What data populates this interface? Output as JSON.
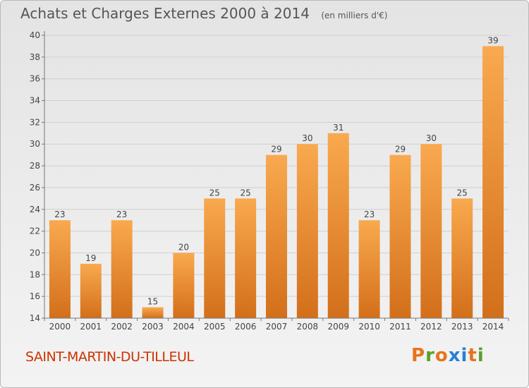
{
  "header": {
    "title": "Achats et Charges Externes 2000 à 2014",
    "unit": "(en milliers d'€)"
  },
  "footer": {
    "place": "SAINT-MARTIN-DU-TILLEUL",
    "logo": "Proxiti"
  },
  "colors": {
    "bar_light": "#f9a94f",
    "bar_dark": "#d36f1a",
    "place": "#cc3300",
    "logo_letters": [
      "#e8731a",
      "#5aa02c",
      "#e8731a",
      "#2a7fd4",
      "#2a7fd4",
      "#e8731a",
      "#5aa02c"
    ]
  },
  "chart_data": {
    "type": "bar",
    "categories": [
      "2000",
      "2001",
      "2002",
      "2003",
      "2004",
      "2005",
      "2006",
      "2007",
      "2008",
      "2009",
      "2010",
      "2011",
      "2012",
      "2013",
      "2014"
    ],
    "values": [
      23,
      19,
      23,
      15,
      20,
      25,
      25,
      29,
      30,
      31,
      23,
      29,
      30,
      25,
      39
    ],
    "ylim": [
      14,
      40
    ],
    "yticks": [
      14,
      16,
      18,
      20,
      22,
      24,
      26,
      28,
      30,
      32,
      34,
      36,
      38,
      40
    ],
    "grid": true,
    "title": "Achats et Charges Externes 2000 à 2014",
    "xlabel": "",
    "ylabel": ""
  }
}
